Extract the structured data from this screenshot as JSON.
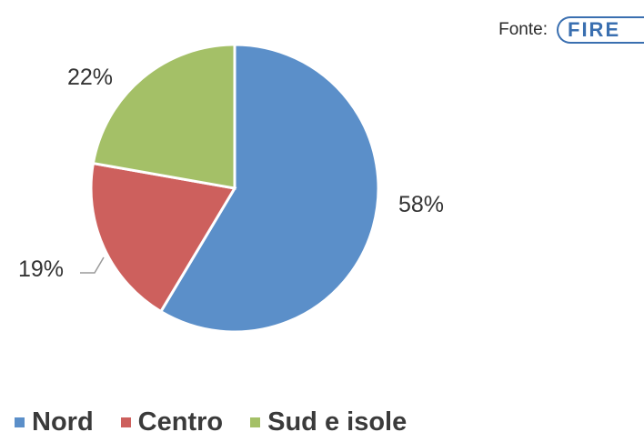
{
  "source": {
    "label": "Fonte:",
    "logo_text": "FIRE"
  },
  "chart_data": {
    "type": "pie",
    "categories": [
      "Nord",
      "Centro",
      "Sud e isole"
    ],
    "values": [
      58,
      19,
      22
    ],
    "labels": [
      "58%",
      "19%",
      "22%"
    ],
    "colors": [
      "#5b8fc9",
      "#cd605d",
      "#a4c067"
    ],
    "legend_position": "bottom",
    "start_angle_deg": 0,
    "direction": "clockwise"
  }
}
